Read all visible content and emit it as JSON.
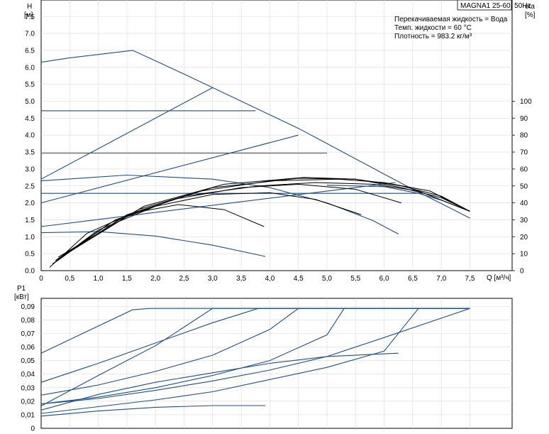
{
  "model_box": "MAGNA1 25-60, 50Hz",
  "info_lines": [
    "Перекачиваемая жидкость = Вода",
    "Темп. жидкости = 60 °C",
    "Плотность = 983.2 кг/м³"
  ],
  "colors": {
    "curve": "#1f4e85",
    "efficiency": "#000000",
    "axis": "#000000"
  },
  "chart_data": [
    {
      "type": "line",
      "xlabel": "Q [м³/ч]",
      "ylabel_left": "H\n[м]",
      "ylabel_right": "eta\n[%]",
      "xlim": [
        0,
        8.2
      ],
      "ylim": [
        0,
        8.0
      ],
      "ylim_right": [
        0,
        160
      ],
      "x_ticks": [
        "0",
        "0,5",
        "1,0",
        "1,5",
        "2,0",
        "2,5",
        "3,0",
        "3,5",
        "4,0",
        "4,5",
        "5,0",
        "5,5",
        "6,0",
        "6,5",
        "7,0",
        "7,5"
      ],
      "y_ticks": [
        "0.0",
        "0.5",
        "1.0",
        "1.5",
        "2.0",
        "2.5",
        "3.0",
        "3.5",
        "4.0",
        "4.5",
        "5.0",
        "5.5",
        "6.0",
        "6.5",
        "7.0",
        "7.5"
      ],
      "y_ticks_right": [
        "0",
        "10",
        "20",
        "30",
        "40",
        "50",
        "60",
        "70",
        "80",
        "90",
        "100"
      ],
      "head_series": [
        {
          "x": [
            0,
            0.5,
            1.0,
            1.6,
            1.9,
            2.5,
            3.0,
            3.5,
            4.0,
            4.5,
            5.0,
            5.5,
            6.0,
            6.5,
            7.0,
            7.5
          ],
          "y": [
            6.15,
            6.28,
            6.38,
            6.5,
            6.27,
            5.8,
            5.4,
            5.0,
            4.6,
            4.2,
            3.75,
            3.3,
            2.85,
            2.4,
            1.98,
            1.55
          ]
        },
        {
          "x": [
            0,
            3.0
          ],
          "y": [
            2.7,
            5.4
          ]
        },
        {
          "x": [
            0,
            3.75
          ],
          "y": [
            4.72,
            4.72
          ]
        },
        {
          "x": [
            0,
            4.5
          ],
          "y": [
            2.0,
            4.0
          ]
        },
        {
          "x": [
            0,
            5.0
          ],
          "y": [
            3.47,
            3.47
          ]
        },
        {
          "x": [
            0,
            6.2
          ],
          "y": [
            1.3,
            2.6
          ]
        },
        {
          "x": [
            0,
            6.6
          ],
          "y": [
            2.28,
            2.28
          ]
        },
        {
          "x": [
            0,
            1.5,
            3.0,
            4.0,
            5.0,
            5.8,
            6.25
          ],
          "y": [
            2.65,
            2.82,
            2.7,
            2.45,
            2.0,
            1.48,
            1.08
          ]
        },
        {
          "x": [
            0,
            1.0,
            2.0,
            3.0,
            3.92
          ],
          "y": [
            1.12,
            1.15,
            1.02,
            0.75,
            0.42
          ]
        },
        {
          "x": [
            5.0,
            6.0,
            6.6,
            7.0,
            7.5
          ],
          "y": [
            2.52,
            2.48,
            2.28,
            2.08,
            1.75
          ]
        }
      ],
      "efficiency_series": [
        {
          "x": [
            0.15,
            0.8,
            1.6,
            2.4,
            3.2,
            3.9
          ],
          "y": [
            2,
            22,
            34,
            39,
            36,
            26
          ]
        },
        {
          "x": [
            0.2,
            1.0,
            2.0,
            3.0,
            4.0,
            4.8,
            5.6
          ],
          "y": [
            4,
            24,
            38,
            45,
            46,
            42,
            33
          ]
        },
        {
          "x": [
            0.25,
            1.2,
            2.3,
            3.5,
            4.5,
            5.5,
            6.3
          ],
          "y": [
            5,
            28,
            42,
            49,
            51,
            48,
            40
          ]
        },
        {
          "x": [
            0.25,
            1.3,
            2.5,
            3.8,
            4.8,
            5.8,
            6.6,
            7.5
          ],
          "y": [
            6,
            30,
            44,
            50,
            52,
            51,
            47,
            35
          ]
        },
        {
          "x": [
            0.3,
            1.5,
            2.8,
            4.0,
            5.2,
            6.0,
            6.8,
            7.5
          ],
          "y": [
            7,
            33,
            47,
            53,
            54,
            52,
            47,
            35
          ]
        },
        {
          "x": [
            0.3,
            1.7,
            3.0,
            4.5,
            5.5,
            6.3,
            7.0,
            7.5
          ],
          "y": [
            7,
            36,
            49,
            54.5,
            54,
            50,
            44,
            35
          ]
        },
        {
          "x": [
            0.3,
            1.8,
            3.2,
            4.6,
            5.5,
            6.3,
            7.0,
            7.5
          ],
          "y": [
            8,
            38,
            51,
            55,
            54,
            49,
            43,
            35
          ]
        }
      ]
    },
    {
      "type": "line",
      "xlabel": "",
      "ylabel": "P1\n[кВт]",
      "xlim": [
        0,
        8.2
      ],
      "ylim": [
        0,
        0.092
      ],
      "y_ticks": [
        "0",
        "0,01",
        "0,02",
        "0,03",
        "0,04",
        "0,05",
        "0,06",
        "0,07",
        "0,08",
        "0,09"
      ],
      "power_series": [
        {
          "x": [
            0,
            1.6,
            1.9,
            7.5
          ],
          "y": [
            0.0555,
            0.0875,
            0.0885,
            0.0885
          ]
        },
        {
          "x": [
            0,
            1.0,
            2.0,
            3.0,
            7.5
          ],
          "y": [
            0.0165,
            0.039,
            0.061,
            0.0885,
            0.0885
          ]
        },
        {
          "x": [
            0,
            1.0,
            2.0,
            3.0,
            3.8,
            7.5
          ],
          "y": [
            0.034,
            0.048,
            0.063,
            0.078,
            0.0885,
            0.0885
          ]
        },
        {
          "x": [
            0,
            1.0,
            2.0,
            3.0,
            4.0,
            4.5,
            7.5
          ],
          "y": [
            0.0245,
            0.032,
            0.042,
            0.054,
            0.073,
            0.0885,
            0.0885
          ]
        },
        {
          "x": [
            0,
            1.0,
            2.0,
            3.0,
            4.0,
            5.0,
            5.3,
            7.5
          ],
          "y": [
            0.018,
            0.023,
            0.03,
            0.039,
            0.05,
            0.069,
            0.0885,
            0.0885
          ]
        },
        {
          "x": [
            0,
            1.0,
            2.0,
            3.0,
            4.0,
            5.0,
            6.0,
            7.5
          ],
          "y": [
            0.018,
            0.022,
            0.028,
            0.035,
            0.043,
            0.053,
            0.067,
            0.0885
          ]
        },
        {
          "x": [
            0,
            1.0,
            2.0,
            3.0,
            4.0,
            5.0,
            6.0,
            6.6,
            7.5
          ],
          "y": [
            0.011,
            0.016,
            0.021,
            0.027,
            0.036,
            0.045,
            0.057,
            0.0885,
            0.0885
          ]
        },
        {
          "x": [
            0,
            1.0,
            2.0,
            3.0,
            4.0,
            5.0,
            6.25
          ],
          "y": [
            0.0135,
            0.025,
            0.034,
            0.041,
            0.048,
            0.053,
            0.0555
          ]
        },
        {
          "x": [
            0,
            1.0,
            2.0,
            3.0,
            3.92
          ],
          "y": [
            0.009,
            0.0128,
            0.0155,
            0.0168,
            0.0168
          ]
        }
      ]
    }
  ]
}
